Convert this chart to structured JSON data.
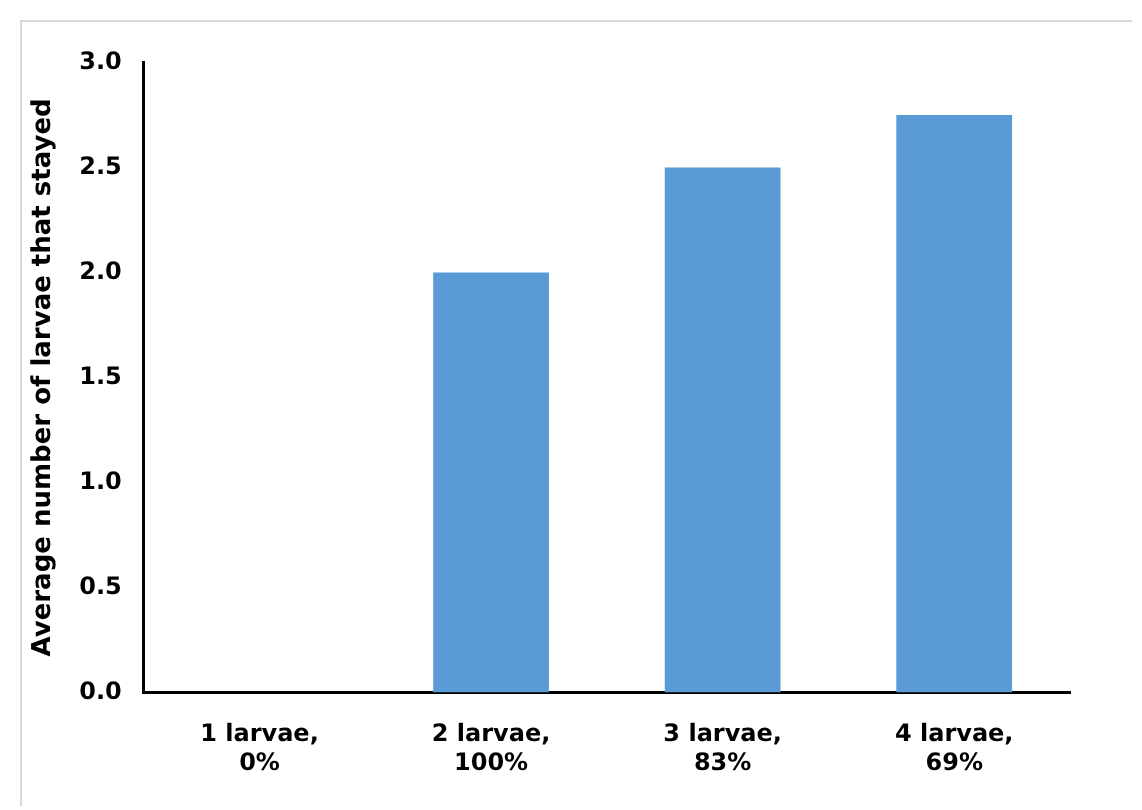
{
  "chart_data": {
    "type": "bar",
    "ylabel": "Average number of larvae that stayed",
    "categories": [
      "1 larvae,\n0%",
      "2 larvae,\n100%",
      "3 larvae,\n83%",
      "4 larvae,\n69%"
    ],
    "values": [
      0,
      2,
      2.5,
      2.75
    ],
    "color": "#5b9bd5",
    "ylim": [
      0,
      3
    ],
    "yticks": [
      {
        "value": 0,
        "label": "0.0"
      },
      0.5,
      {
        "value": 1,
        "label": "1.0"
      },
      1.5,
      {
        "value": 2,
        "label": "2.0"
      },
      2.5,
      {
        "value": 3,
        "label": "3.0"
      }
    ],
    "grid": false,
    "legend": false
  }
}
